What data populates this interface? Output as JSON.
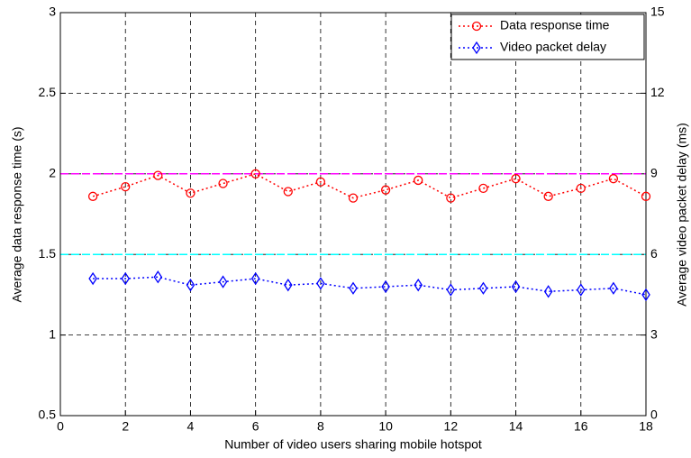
{
  "chart_data": {
    "type": "line",
    "xlabel": "Number of video users sharing mobile hotspot",
    "ylabel": "Average data response time (s)",
    "y2label": "Average video packet delay (ms)",
    "x": [
      1,
      2,
      3,
      4,
      5,
      6,
      7,
      8,
      9,
      10,
      11,
      12,
      13,
      14,
      15,
      16,
      17,
      18
    ],
    "series": [
      {
        "name": "Data response time",
        "color": "#ff0000",
        "marker": "circle",
        "axis": "y",
        "values": [
          1.86,
          1.92,
          1.99,
          1.88,
          1.94,
          2.0,
          1.89,
          1.95,
          1.85,
          1.9,
          1.96,
          1.85,
          1.91,
          1.97,
          1.86,
          1.91,
          1.97,
          1.86
        ]
      },
      {
        "name": "Video packet delay",
        "color": "#0000ff",
        "marker": "diamond",
        "axis": "y2",
        "values": [
          5.1,
          5.1,
          5.16,
          4.86,
          4.98,
          5.1,
          4.86,
          4.92,
          4.74,
          4.8,
          4.86,
          4.68,
          4.74,
          4.8,
          4.62,
          4.68,
          4.74,
          4.5
        ]
      }
    ],
    "hlines": [
      {
        "value": 2,
        "color": "#ff00ff"
      },
      {
        "value": 1.5,
        "color": "#00ffff"
      }
    ],
    "xlim": [
      0,
      18
    ],
    "xticks": [
      0,
      2,
      4,
      6,
      8,
      10,
      12,
      14,
      16,
      18
    ],
    "ylim": [
      0.5,
      3
    ],
    "yticks": [
      0.5,
      1,
      1.5,
      2,
      2.5,
      3
    ],
    "y2lim": [
      0,
      15
    ],
    "y2ticks": [
      0,
      3,
      6,
      9,
      12,
      15
    ],
    "grid": true,
    "legend": "top-right"
  }
}
